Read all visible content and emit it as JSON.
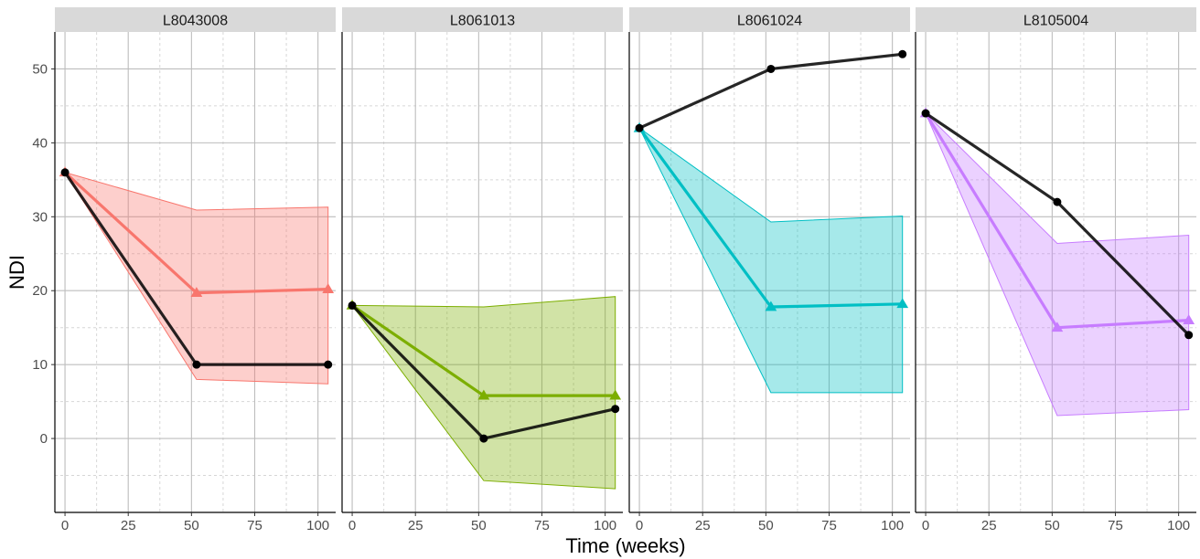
{
  "chart_data": {
    "type": "line",
    "facet_variable": "patient",
    "xlabel": "Time (weeks)",
    "ylabel": "NDI",
    "xlim": [
      -4,
      107
    ],
    "ylim": [
      -10,
      55
    ],
    "x_ticks": [
      0,
      25,
      50,
      75,
      100
    ],
    "y_ticks": [
      0,
      10,
      20,
      30,
      40,
      50
    ],
    "grid": true,
    "legend": "none",
    "strip_color": "#d9d9d9",
    "panels": [
      {
        "label": "L8043008",
        "color": "#f8766d",
        "x": [
          0,
          52,
          104
        ],
        "observed": [
          36,
          10,
          10
        ],
        "predicted": [
          36,
          19.7,
          20.2
        ],
        "band_lower": [
          36,
          8,
          7.4
        ],
        "band_upper": [
          36,
          30.9,
          31.3
        ]
      },
      {
        "label": "L8061013",
        "color": "#7cae00",
        "x": [
          0,
          52,
          104
        ],
        "observed": [
          18,
          0,
          4
        ],
        "predicted": [
          18,
          5.8,
          5.8
        ],
        "band_lower": [
          18,
          -5.7,
          -6.8
        ],
        "band_upper": [
          18,
          17.8,
          19.2
        ]
      },
      {
        "label": "L8061024",
        "color": "#00bfc4",
        "x": [
          0,
          52,
          104
        ],
        "observed": [
          42,
          50,
          52
        ],
        "predicted": [
          42,
          17.8,
          18.2
        ],
        "band_lower": [
          42,
          6.2,
          6.2
        ],
        "band_upper": [
          42,
          29.3,
          30.1
        ]
      },
      {
        "label": "L8105004",
        "color": "#c77cff",
        "x": [
          0,
          52,
          104
        ],
        "observed": [
          44,
          32,
          14
        ],
        "predicted": [
          44,
          15,
          16
        ],
        "band_lower": [
          44,
          3.1,
          3.9
        ],
        "band_upper": [
          44,
          26.4,
          27.5
        ]
      }
    ]
  }
}
